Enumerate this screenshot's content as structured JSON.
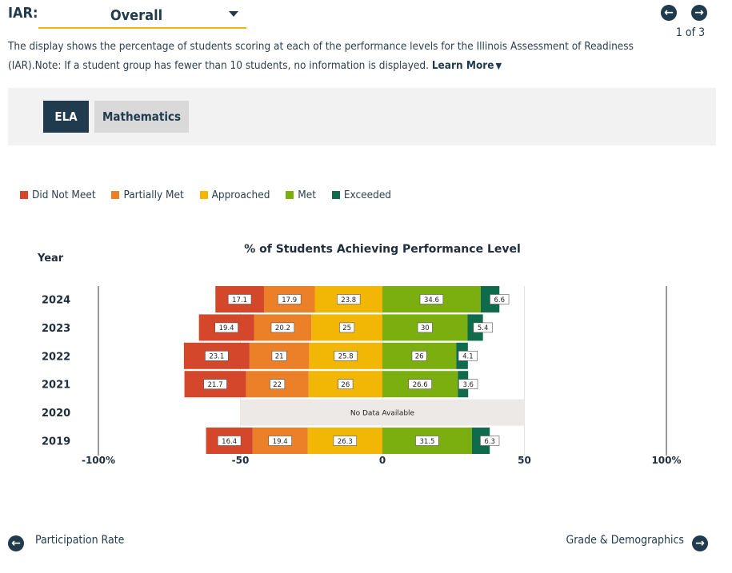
{
  "header": {
    "label": "IAR:",
    "dropdown_value": "Overall",
    "pager": "1 of 3"
  },
  "description": {
    "text": "The display shows the percentage of students scoring at each of the performance levels for the Illinois Assessment of Readiness (IAR).Note: If a student group has fewer than 10 students, no information is displayed.",
    "learn_more": "Learn More"
  },
  "tabs": [
    {
      "label": "ELA"
    },
    {
      "label": "Mathematics"
    }
  ],
  "colors": {
    "did_not_meet": "#d4472b",
    "partially_met": "#ec8029",
    "approached": "#f2b705",
    "met": "#7aaf0f",
    "exceeded": "#106b4d",
    "no_data": "#ece9e6",
    "active_tab": "#1f3b4d"
  },
  "legend": [
    {
      "label": "Did Not Meet"
    },
    {
      "label": "Partially Met"
    },
    {
      "label": "Approached"
    },
    {
      "label": "Met"
    },
    {
      "label": "Exceeded"
    }
  ],
  "chart_data": {
    "type": "bar",
    "orientation": "horizontal",
    "stacking": "diverging",
    "title": "% of Students Achieving Performance Level",
    "ylabel": "Year",
    "xlim": [
      -100,
      100
    ],
    "x_ticks": [
      {
        "value": -100,
        "label": "-100%"
      },
      {
        "value": -50,
        "label": "-50"
      },
      {
        "value": 0,
        "label": "0"
      },
      {
        "value": 50,
        "label": "50"
      },
      {
        "value": 100,
        "label": "100%"
      }
    ],
    "gridlines_at": [
      -100,
      100
    ],
    "categories": [
      "2024",
      "2023",
      "2022",
      "2021",
      "2020",
      "2019"
    ],
    "series": [
      {
        "name": "Did Not Meet",
        "side": "negative",
        "values": [
          17.1,
          19.4,
          23.1,
          21.7,
          null,
          16.4
        ]
      },
      {
        "name": "Partially Met",
        "side": "negative",
        "values": [
          17.9,
          20.2,
          21,
          22,
          null,
          19.4
        ]
      },
      {
        "name": "Approached",
        "side": "negative",
        "values": [
          23.8,
          25,
          25.8,
          26,
          null,
          26.3
        ]
      },
      {
        "name": "Met",
        "side": "positive",
        "values": [
          34.6,
          30,
          26,
          26.6,
          null,
          31.5
        ]
      },
      {
        "name": "Exceeded",
        "side": "positive",
        "values": [
          6.6,
          5.4,
          4.1,
          3.6,
          null,
          6.3
        ]
      }
    ],
    "no_data": {
      "category": "2020",
      "label": "No Data Available",
      "range": [
        -50,
        50
      ]
    }
  },
  "footer": {
    "prev_label": "Participation Rate",
    "next_label": "Grade & Demographics"
  }
}
